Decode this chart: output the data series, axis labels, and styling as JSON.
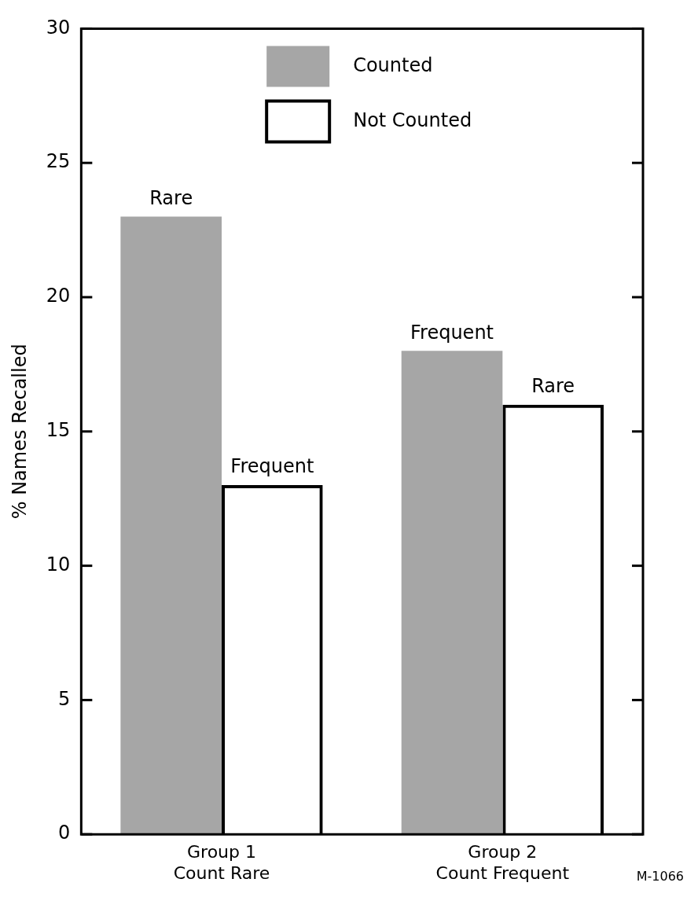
{
  "chart_data": {
    "type": "bar",
    "ylabel": "% Names Recalled",
    "categories": [
      "Group 1\nCount Rare",
      "Group 2\nCount Frequent"
    ],
    "series": [
      {
        "name": "Counted",
        "color": "#a6a6a6",
        "values": [
          23,
          18
        ],
        "value_labels": [
          "Rare",
          "Frequent"
        ]
      },
      {
        "name": "Not Counted",
        "color": "#000000",
        "values": [
          13,
          16
        ],
        "value_labels": [
          "Frequent",
          "Rare"
        ]
      }
    ],
    "ylim": [
      0,
      30
    ],
    "yticks": [
      0,
      5,
      10,
      15,
      20,
      25,
      30
    ],
    "grid": false,
    "legend": "top",
    "annotations": [
      "M-1066"
    ]
  }
}
